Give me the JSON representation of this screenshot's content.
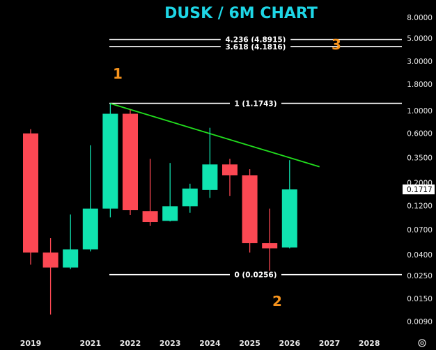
{
  "chart_data": {
    "type": "candlestick",
    "title": "DUSK / 6M CHART",
    "y_scale": "log",
    "ylim": [
      0.0075,
      9.0
    ],
    "y_ticks": [
      "8.0000",
      "5.0000",
      "3.0000",
      "1.8000",
      "1.0000",
      "0.6000",
      "0.3500",
      "0.2000",
      "0.1200",
      "0.0700",
      "0.0400",
      "0.0250",
      "0.0150",
      "0.0090"
    ],
    "x_ticks": [
      "2019",
      "2021",
      "2022",
      "2023",
      "2024",
      "2025",
      "2026",
      "2027",
      "2028"
    ],
    "current_price": "0.1717",
    "candles": [
      {
        "open": 0.6,
        "high": 0.66,
        "low": 0.032,
        "close": 0.042
      },
      {
        "open": 0.042,
        "high": 0.058,
        "low": 0.0105,
        "close": 0.03
      },
      {
        "open": 0.03,
        "high": 0.098,
        "low": 0.029,
        "close": 0.045
      },
      {
        "open": 0.045,
        "high": 0.46,
        "low": 0.043,
        "close": 0.112
      },
      {
        "open": 0.112,
        "high": 1.17,
        "low": 0.092,
        "close": 0.93
      },
      {
        "open": 0.93,
        "high": 1.02,
        "low": 0.097,
        "close": 0.108
      },
      {
        "open": 0.106,
        "high": 0.34,
        "low": 0.076,
        "close": 0.083
      },
      {
        "open": 0.085,
        "high": 0.31,
        "low": 0.084,
        "close": 0.118
      },
      {
        "open": 0.118,
        "high": 0.195,
        "low": 0.102,
        "close": 0.175
      },
      {
        "open": 0.17,
        "high": 0.68,
        "low": 0.142,
        "close": 0.3
      },
      {
        "open": 0.3,
        "high": 0.34,
        "low": 0.148,
        "close": 0.235
      },
      {
        "open": 0.235,
        "high": 0.27,
        "low": 0.042,
        "close": 0.052
      },
      {
        "open": 0.052,
        "high": 0.112,
        "low": 0.028,
        "close": 0.046
      },
      {
        "open": 0.047,
        "high": 0.33,
        "low": 0.046,
        "close": 0.1717
      }
    ],
    "fib_levels": [
      {
        "label": "4.236 (4.8915)",
        "value": 4.8915
      },
      {
        "label": "3.618 (4.1816)",
        "value": 4.1816
      },
      {
        "label": "1 (1.1743)",
        "value": 1.1743
      },
      {
        "label": "0 (0.0256)",
        "value": 0.0256
      }
    ],
    "trendline": {
      "from": {
        "period": 4,
        "value": 1.17
      },
      "to": {
        "period": 14.5,
        "value": 0.285
      },
      "color": "#22e01e"
    },
    "wave_labels": [
      "1",
      "2",
      "3"
    ],
    "colors": {
      "up": "#10e3b0",
      "down": "#fc4853",
      "background": "#000000",
      "fib": "#ffffff",
      "wave": "#f7941d",
      "title": "#1ed6e6"
    }
  },
  "controls": {
    "settings_icon": "gear-icon"
  }
}
